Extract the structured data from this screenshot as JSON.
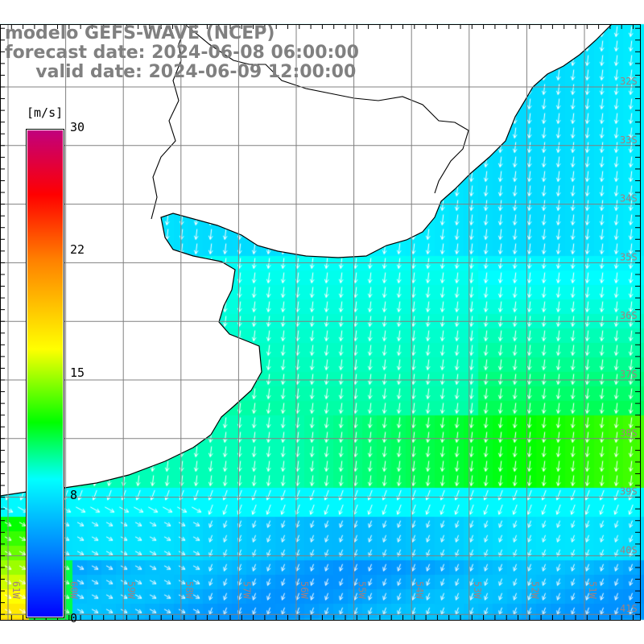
{
  "title": {
    "model": "modelo GEFS-WAVE (NCEP)",
    "forecast": "forecast date: 2024-06-08 06:00:00",
    "valid": "     valid date: 2024-06-09 12:00:00"
  },
  "colorbar": {
    "unit": "[m/s]",
    "ticks": [
      "30",
      "22",
      "15",
      "8",
      "0"
    ],
    "stops": [
      {
        "v": 0,
        "c": "#0000ff"
      },
      {
        "v": 4,
        "c": "#0080ff"
      },
      {
        "v": 8.5,
        "c": "#00ffff"
      },
      {
        "v": 12,
        "c": "#00ff00"
      },
      {
        "v": 16.5,
        "c": "#ffff00"
      },
      {
        "v": 22,
        "c": "#ff8000"
      },
      {
        "v": 26,
        "c": "#ff0000"
      },
      {
        "v": 30,
        "c": "#c0007f"
      }
    ]
  },
  "grid": {
    "lat_labels": [
      "32S",
      "33S",
      "34S",
      "35S",
      "36S",
      "37S",
      "38S",
      "39S",
      "40S",
      "41S"
    ],
    "lon_labels": [
      "61W",
      "60W",
      "59W",
      "58W",
      "57W",
      "56W",
      "55W",
      "54W",
      "53W",
      "52W",
      "51W"
    ]
  },
  "colors": {
    "land": "#ffffff",
    "coast": "#000000",
    "grid": "#808080",
    "arrow": "#ffffff",
    "title": "#808080"
  }
}
